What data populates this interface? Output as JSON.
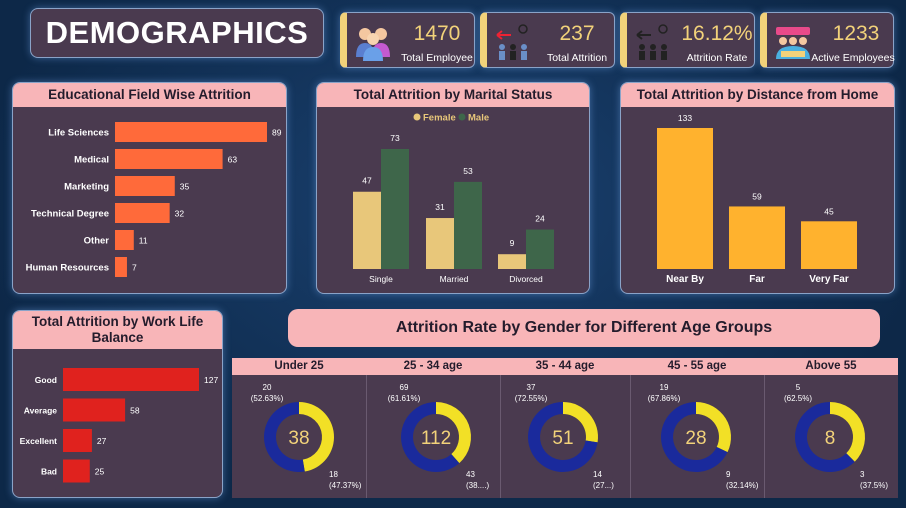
{
  "title": "DEMOGRAPHICS",
  "kpis": [
    {
      "value": "1470",
      "label": "Total Employee",
      "icon": "people-group-icon"
    },
    {
      "value": "237",
      "label": "Total Attrition",
      "icon": "attrition-exit-icon"
    },
    {
      "value": "16.12%",
      "label": "Attrition Rate",
      "icon": "attrition-rate-icon"
    },
    {
      "value": "1233",
      "label": "Active Employees",
      "icon": "active-team-icon"
    }
  ],
  "edu": {
    "title": "Educational Field Wise Attrition",
    "chart_data": {
      "type": "bar",
      "orientation": "horizontal",
      "categories": [
        "Life Sciences",
        "Medical",
        "Marketing",
        "Technical Degree",
        "Other",
        "Human Resources"
      ],
      "values": [
        89,
        63,
        35,
        32,
        11,
        7
      ],
      "color": "#ff6a3a"
    }
  },
  "marital": {
    "title": "Total Attrition by Marital Status",
    "chart_data": {
      "type": "bar",
      "categories": [
        "Single",
        "Married",
        "Divorced"
      ],
      "series": [
        {
          "name": "Female",
          "values": [
            47,
            31,
            9
          ],
          "color": "#e8c77a"
        },
        {
          "name": "Male",
          "values": [
            73,
            53,
            24
          ],
          "color": "#3e664a"
        }
      ],
      "legend": "top-center"
    }
  },
  "distance": {
    "title": "Total Attrition by Distance from Home",
    "chart_data": {
      "type": "bar",
      "categories": [
        "Near By",
        "Far",
        "Very Far"
      ],
      "values": [
        133,
        59,
        45
      ],
      "color": "#ffb22e"
    }
  },
  "worklife": {
    "title": "Total Attrition by Work Life Balance",
    "chart_data": {
      "type": "bar",
      "orientation": "horizontal",
      "categories": [
        "Good",
        "Average",
        "Excellent",
        "Bad"
      ],
      "values": [
        127,
        58,
        27,
        25
      ],
      "color": "#e0221e"
    }
  },
  "gender_age": {
    "title": "Attrition Rate by Gender for Different Age Groups",
    "chart_data": {
      "type": "pie",
      "style": "donut",
      "colors": {
        "blue": "#1a2a9c",
        "yellow": "#f2e026"
      },
      "groups": [
        {
          "label": "Under 25",
          "total": "38",
          "blue": 20,
          "blue_label": "20",
          "blue_pct": "(52.63%)",
          "yellow": 18,
          "yellow_label": "18",
          "yellow_pct": "(47.37%)"
        },
        {
          "label": "25 - 34 age",
          "total": "112",
          "blue": 69,
          "blue_label": "69",
          "blue_pct": "(61.61%)",
          "yellow": 43,
          "yellow_label": "43",
          "yellow_pct": "(38....)"
        },
        {
          "label": "35 - 44 age",
          "total": "51",
          "blue": 37,
          "blue_label": "37",
          "blue_pct": "(72.55%)",
          "yellow": 14,
          "yellow_label": "14",
          "yellow_pct": "(27...)"
        },
        {
          "label": "45 - 55 age",
          "total": "28",
          "blue": 19,
          "blue_label": "19",
          "blue_pct": "(67.86%)",
          "yellow": 9,
          "yellow_label": "9",
          "yellow_pct": "(32.14%)"
        },
        {
          "label": "Above 55",
          "total": "8",
          "blue": 5,
          "blue_label": "5",
          "blue_pct": "(62.5%)",
          "yellow": 3,
          "yellow_label": "3",
          "yellow_pct": "(37.5%)"
        }
      ]
    }
  }
}
